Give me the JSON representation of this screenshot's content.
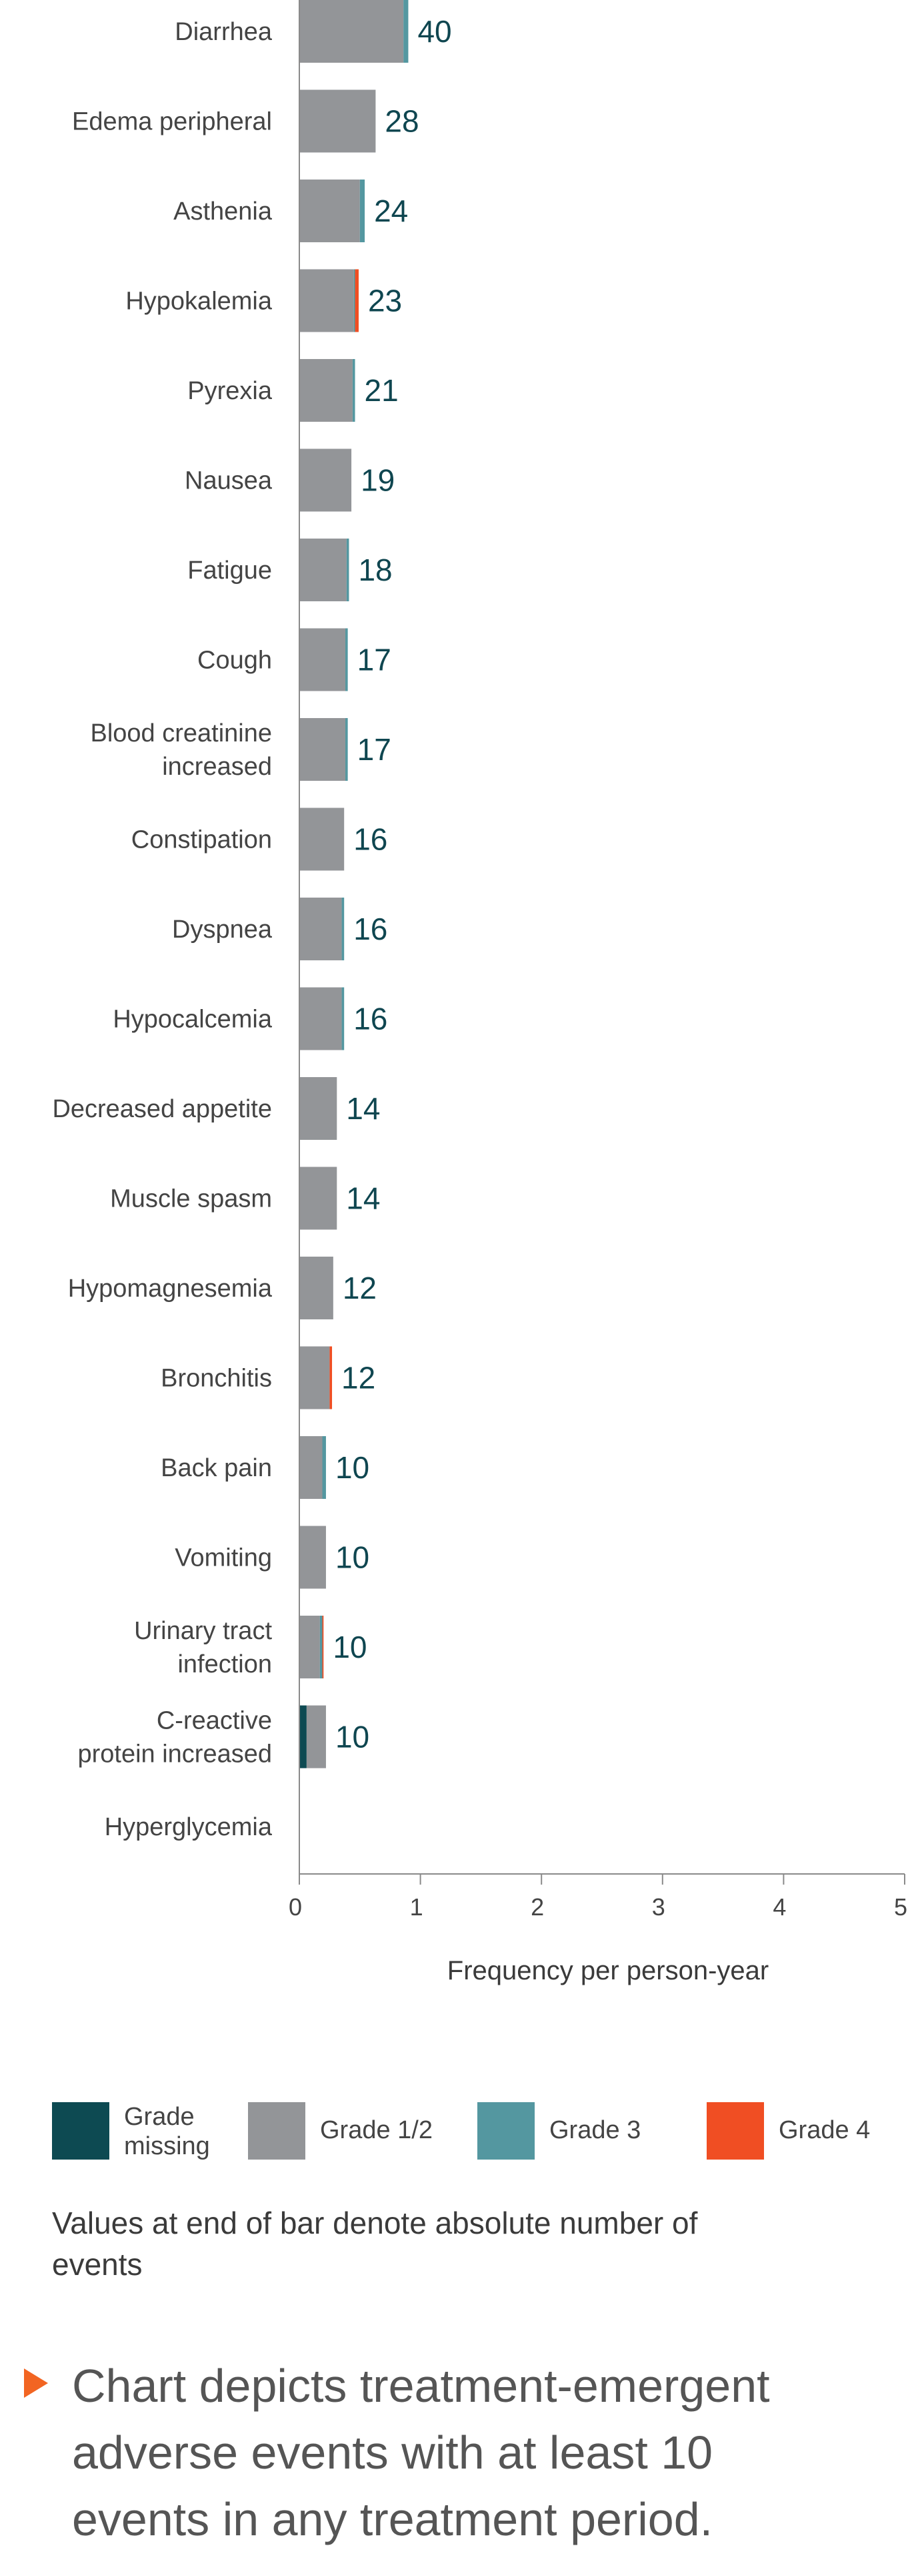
{
  "chart_data": {
    "type": "bar",
    "orientation": "horizontal",
    "stacked": true,
    "categories": [
      "Diarrhea",
      "Edema peripheral",
      "Asthenia",
      "Hypokalemia",
      "Pyrexia",
      "Nausea",
      "Fatigue",
      "Cough",
      "Blood creatinine increased",
      "Constipation",
      "Dyspnea",
      "Hypocalcemia",
      "Decreased appetite",
      "Muscle spasm",
      "Hypomagnesemia",
      "Bronchitis",
      "Back pain",
      "Vomiting",
      "Urinary tract infection",
      "C-reactive protein increased",
      "Hyperglycemia"
    ],
    "category_lines": [
      [
        "Diarrhea"
      ],
      [
        "Edema peripheral"
      ],
      [
        "Asthenia"
      ],
      [
        "Hypokalemia"
      ],
      [
        "Pyrexia"
      ],
      [
        "Nausea"
      ],
      [
        "Fatigue"
      ],
      [
        "Cough"
      ],
      [
        "Blood creatinine",
        "increased"
      ],
      [
        "Constipation"
      ],
      [
        "Dyspnea"
      ],
      [
        "Hypocalcemia"
      ],
      [
        "Decreased appetite"
      ],
      [
        "Muscle spasm"
      ],
      [
        "Hypomagnesemia"
      ],
      [
        "Bronchitis"
      ],
      [
        "Back pain"
      ],
      [
        "Vomiting"
      ],
      [
        "Urinary tract",
        "infection"
      ],
      [
        "C-reactive",
        "protein increased"
      ],
      [
        "Hyperglycemia"
      ]
    ],
    "series": [
      {
        "name": "Grade missing",
        "color": "#0d4a52",
        "values": [
          0,
          0,
          0,
          0,
          0,
          0,
          0,
          0,
          0,
          0,
          0,
          0,
          0,
          0,
          0,
          0,
          0,
          0,
          0,
          0.06,
          0
        ]
      },
      {
        "name": "Grade 1/2",
        "color": "#939598",
        "values": [
          0.86,
          0.63,
          0.5,
          0.45,
          0.44,
          0.43,
          0.39,
          0.38,
          0.38,
          0.37,
          0.35,
          0.35,
          0.31,
          0.31,
          0.28,
          0.25,
          0.19,
          0.22,
          0.17,
          0.16,
          0
        ]
      },
      {
        "name": "Grade 3",
        "color": "#5497a0",
        "values": [
          0.04,
          0,
          0.04,
          0.01,
          0.02,
          0,
          0.02,
          0.02,
          0.02,
          0,
          0.02,
          0.02,
          0,
          0,
          0,
          0,
          0.03,
          0,
          0.02,
          0,
          0
        ]
      },
      {
        "name": "Grade 4",
        "color": "#f04e23",
        "values": [
          0,
          0,
          0,
          0.03,
          0,
          0,
          0,
          0,
          0,
          0,
          0,
          0,
          0,
          0,
          0,
          0.02,
          0,
          0,
          0.01,
          0,
          0
        ]
      }
    ],
    "event_counts": [
      "40",
      "28",
      "24",
      "23",
      "21",
      "19",
      "18",
      "17",
      "17",
      "16",
      "16",
      "16",
      "14",
      "14",
      "12",
      "12",
      "10",
      "10",
      "10",
      "10",
      ""
    ],
    "xlabel": "Frequency per person-year",
    "xlim": [
      0,
      5
    ],
    "xticks": [
      "0",
      "1",
      "2",
      "3",
      "4",
      "5"
    ],
    "grid": false
  },
  "legend": {
    "items": [
      {
        "label": "Grade missing",
        "lines": [
          "Grade",
          "missing"
        ],
        "color": "#0d4a52"
      },
      {
        "label": "Grade 1/2",
        "lines": [
          "Grade 1/2"
        ],
        "color": "#939598"
      },
      {
        "label": "Grade 3",
        "lines": [
          "Grade 3"
        ],
        "color": "#5497a0"
      },
      {
        "label": "Grade 4",
        "lines": [
          "Grade 4"
        ],
        "color": "#f04e23"
      }
    ]
  },
  "note": "Values at end of bar denote absolute number of events",
  "takeaway": {
    "bullet_icon": "triangle-bullet-icon",
    "bullet_color": "#f26522",
    "text": "Chart depicts treatment-emergent adverse events with at least 10 events in any treatment period."
  }
}
